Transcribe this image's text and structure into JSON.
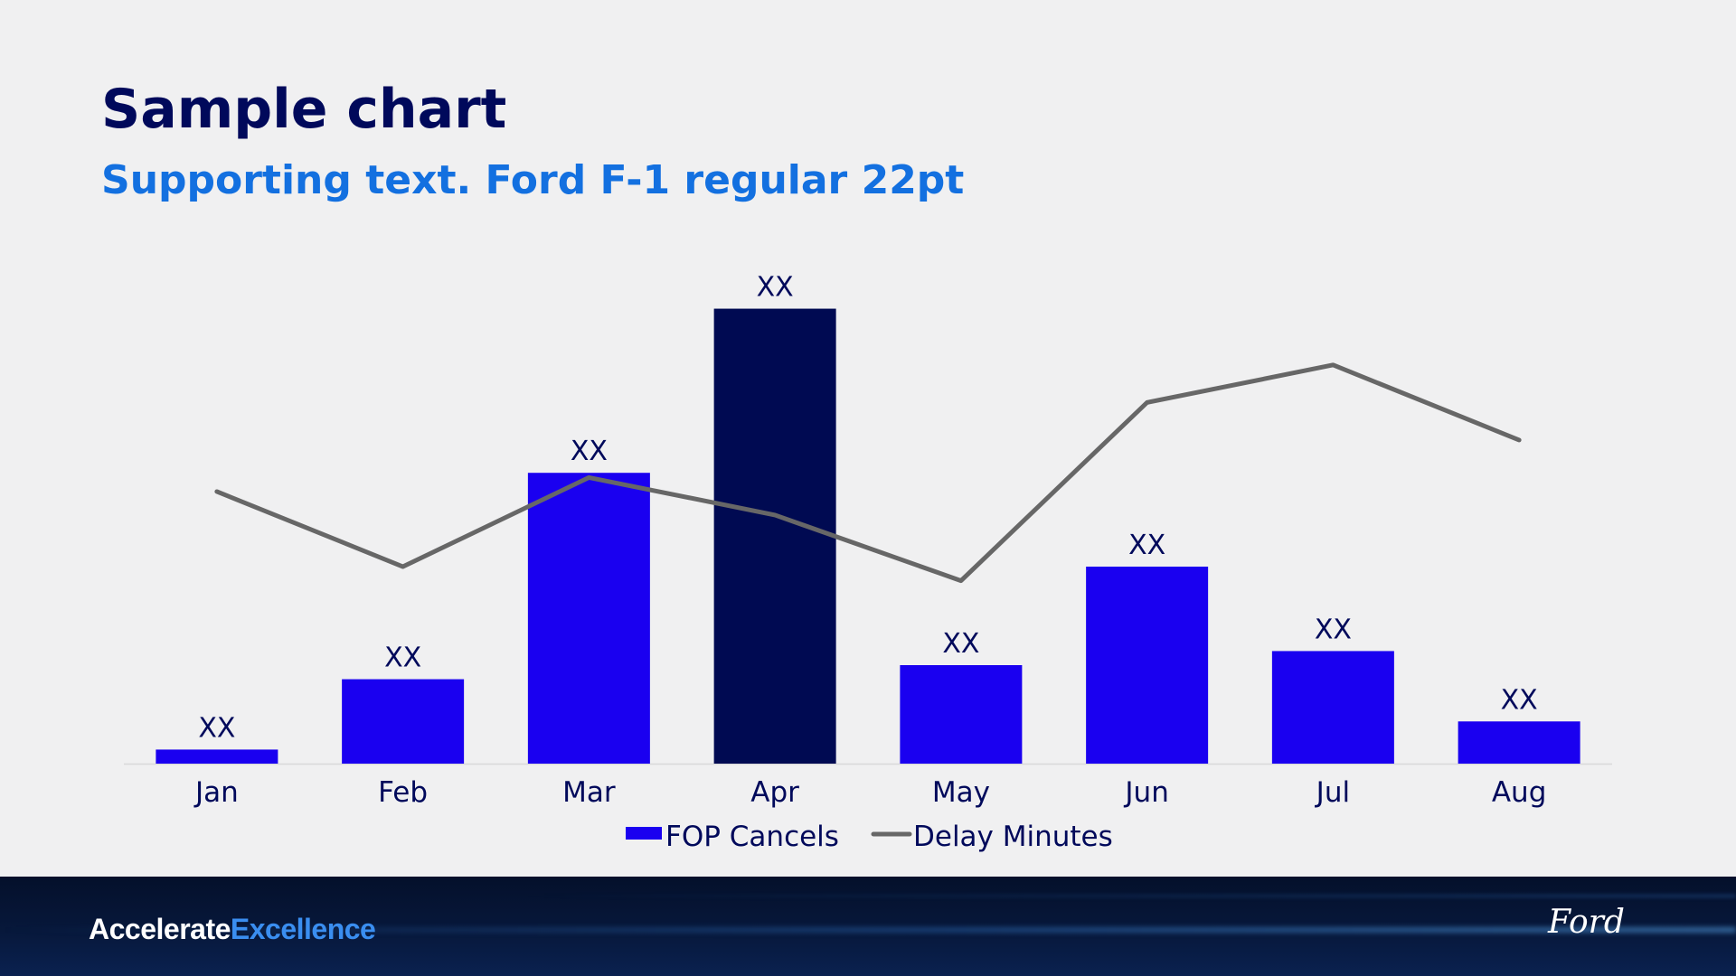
{
  "title": "Sample chart",
  "subtitle": "Supporting text. Ford F-1 regular 22pt",
  "chart_data": {
    "type": "bar",
    "categories": [
      "Jan",
      "Feb",
      "Mar",
      "Apr",
      "May",
      "Jun",
      "Jul",
      "Aug"
    ],
    "series": [
      {
        "name": "FOP Cancels",
        "kind": "bar",
        "color": "#1a00f0",
        "highlight_color": "#000a52",
        "highlight_index": 3,
        "values": [
          3,
          18,
          62,
          97,
          21,
          42,
          24,
          9
        ]
      },
      {
        "name": "Delay Minutes",
        "kind": "line",
        "color": "#676767",
        "values": [
          58,
          42,
          61,
          53,
          39,
          77,
          85,
          69
        ]
      }
    ],
    "data_labels": [
      "XX",
      "XX",
      "XX",
      "XX",
      "XX",
      "XX",
      "XX",
      "XX"
    ],
    "bar_ylim": [
      0,
      100
    ],
    "line_ylim": [
      0,
      100
    ],
    "xlabel": "",
    "ylabel": "",
    "grid": false,
    "legend_position": "bottom-center"
  },
  "footer": {
    "brand_part1": "Accelerate",
    "brand_part2": "Excellence",
    "logo_text": "Ford",
    "brand_colors": {
      "part1": "#ffffff",
      "part2": "#3a8ef0"
    }
  }
}
